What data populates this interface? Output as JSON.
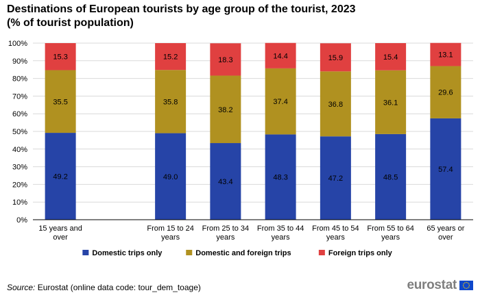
{
  "title": {
    "line1": "Destinations of European tourists by age group of the tourist, 2023",
    "line2": "(% of tourist population)"
  },
  "chart_data": {
    "type": "bar",
    "stacked": true,
    "categories": [
      [
        "15 years and",
        "over"
      ],
      [
        "",
        ""
      ],
      [
        "From 15 to 24",
        "years"
      ],
      [
        "From 25 to 34",
        "years"
      ],
      [
        "From 35 to 44",
        "years"
      ],
      [
        "From 45 to 54",
        "years"
      ],
      [
        "From 55 to 64",
        "years"
      ],
      [
        "65 years or",
        "over"
      ]
    ],
    "series": [
      {
        "name": "Domestic trips only",
        "color": "#2644a7",
        "values": [
          49.2,
          null,
          49.0,
          43.4,
          48.3,
          47.2,
          48.5,
          57.4
        ],
        "labels": [
          "49.2",
          "",
          "49.0",
          "43.4",
          "48.3",
          "47.2",
          "48.5",
          "57.4"
        ]
      },
      {
        "name": "Domestic and foreign trips",
        "color": "#b09120",
        "values": [
          35.5,
          null,
          35.8,
          38.2,
          37.4,
          36.8,
          36.1,
          29.6
        ],
        "labels": [
          "35.5",
          "",
          "35.8",
          "38.2",
          "37.4",
          "36.8",
          "36.1",
          "29.6"
        ]
      },
      {
        "name": "Foreign trips only",
        "color": "#e04040",
        "values": [
          15.3,
          null,
          15.2,
          18.3,
          14.4,
          15.9,
          15.4,
          13.1
        ],
        "labels": [
          "15.3",
          "",
          "15.2",
          "18.3",
          "14.4",
          "15.9",
          "15.4",
          "13.1"
        ]
      }
    ],
    "ylim": [
      0,
      100
    ],
    "yticks": [
      "0%",
      "10%",
      "20%",
      "30%",
      "40%",
      "50%",
      "60%",
      "70%",
      "80%",
      "90%",
      "100%"
    ],
    "xlabel": "",
    "ylabel": "",
    "grid": true,
    "legend_position": "bottom"
  },
  "source": {
    "label": "Source:",
    "text": "Eurostat (online data code: tour_dem_toage)"
  },
  "logo": {
    "text": "eurostat",
    "icon": "eu-flag-icon"
  }
}
